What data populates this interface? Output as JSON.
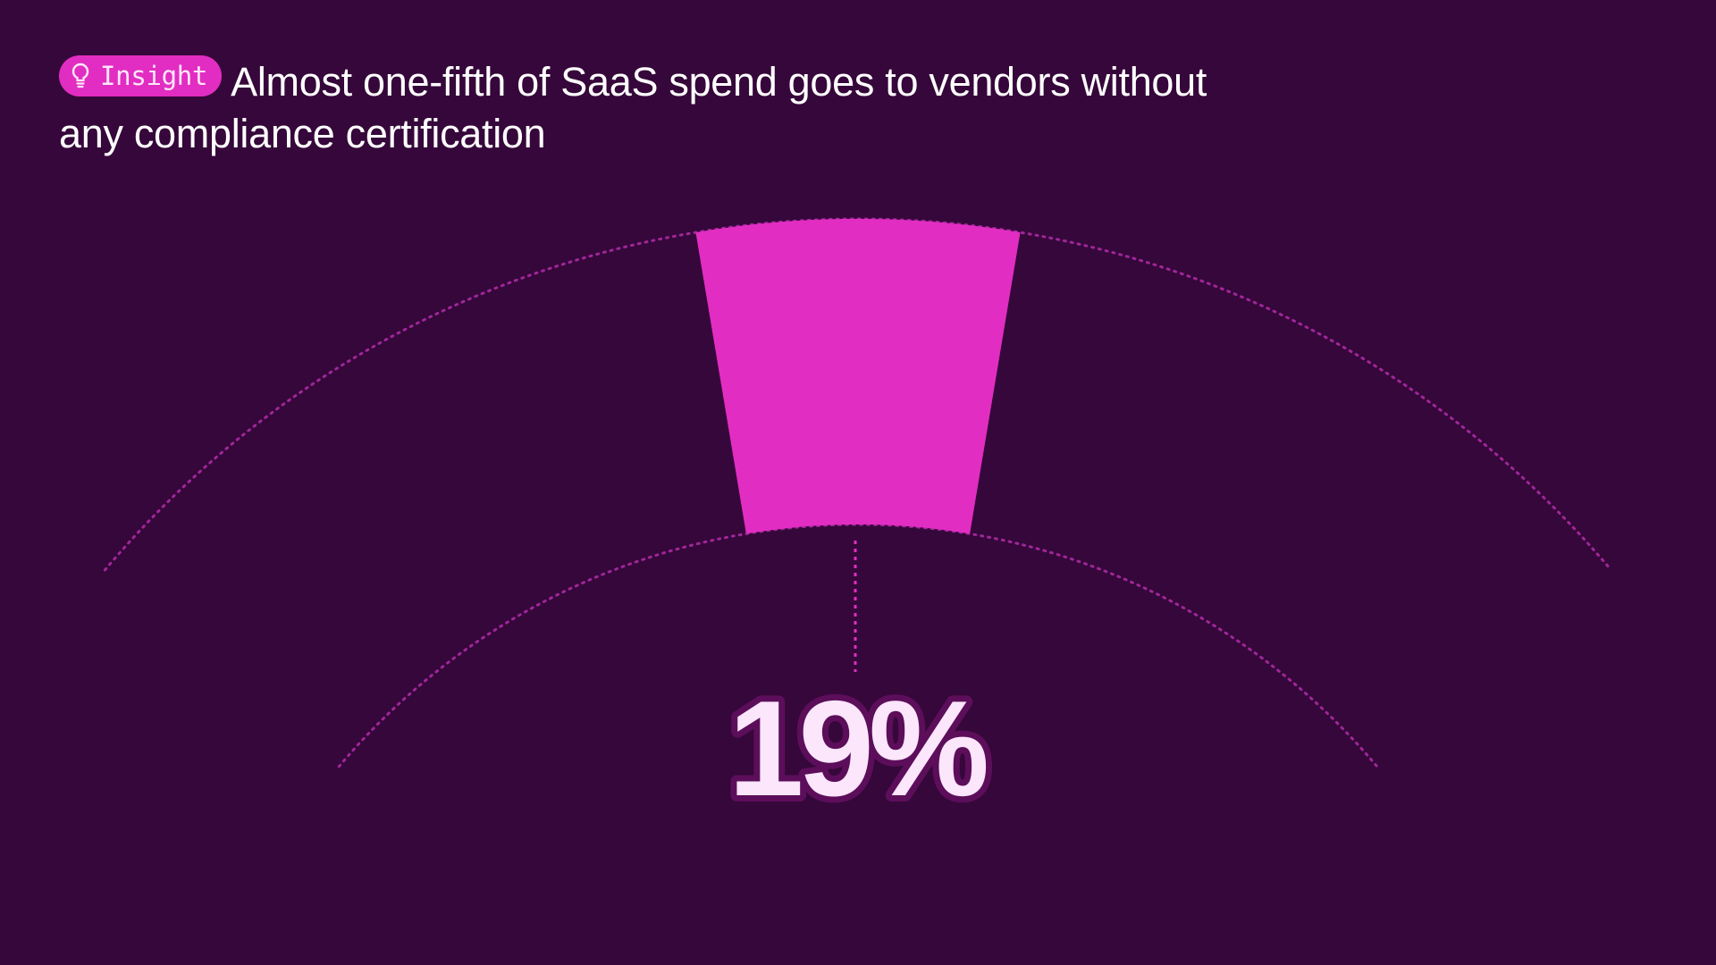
{
  "header": {
    "badge_label": "Insight",
    "badge_icon": "lightbulb-icon",
    "headline": "Almost one-fifth of SaaS spend goes to vendors without any compliance certification"
  },
  "chart_data": {
    "type": "gauge",
    "value": 19,
    "value_label": "19%",
    "unit": "%",
    "range": [
      0,
      100
    ]
  },
  "colors": {
    "background": "#36073a",
    "accent": "#e22dc2",
    "dotted_arc": "#a0269a",
    "value_text": "#fbe6fb",
    "value_outline": "#5c0e5a"
  }
}
